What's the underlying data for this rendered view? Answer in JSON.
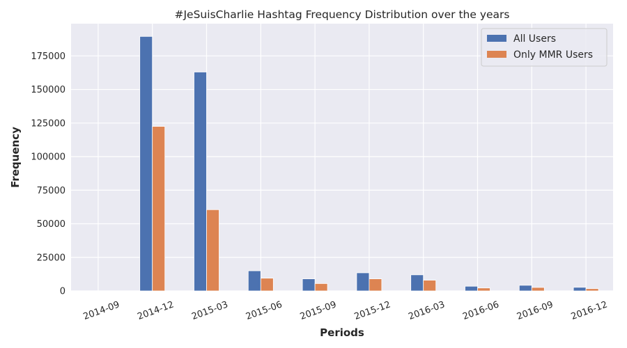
{
  "chart_data": {
    "type": "bar",
    "title": "#JeSuisCharlie Hashtag Frequency Distribution over the years",
    "xlabel": "Periods",
    "ylabel": "Frequency",
    "categories": [
      "2014-09",
      "2014-12",
      "2015-03",
      "2015-06",
      "2015-09",
      "2015-12",
      "2016-03",
      "2016-06",
      "2016-09",
      "2016-12"
    ],
    "series": [
      {
        "name": "All Users",
        "color": "#4c72b0",
        "values": [
          0,
          189500,
          163000,
          15000,
          9000,
          13500,
          12000,
          3500,
          4200,
          2700
        ]
      },
      {
        "name": "Only MMR Users",
        "color": "#dd8452",
        "values": [
          0,
          122500,
          60500,
          9500,
          5500,
          9000,
          8000,
          2200,
          2600,
          1700
        ]
      }
    ],
    "yticks": [
      0,
      25000,
      50000,
      75000,
      100000,
      125000,
      150000,
      175000
    ],
    "ylim": [
      0,
      199000
    ],
    "grid": true,
    "legend_position": "top-right",
    "background_color": "#eaeaf2",
    "grid_color": "#ffffff"
  }
}
